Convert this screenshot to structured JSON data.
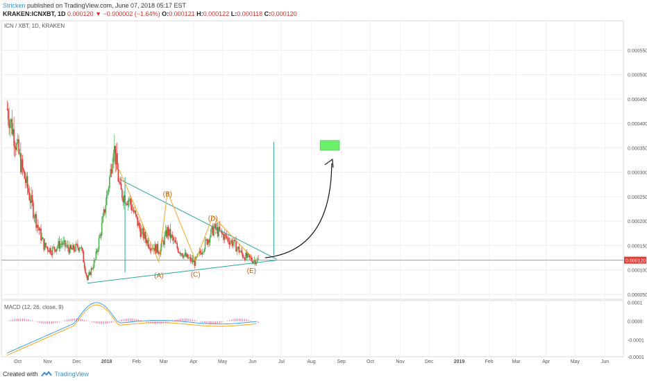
{
  "header": {
    "author": "Stricken",
    "published": "published on TradingView.com, June 07, 2018 05:17 EST",
    "symbol_line": "KRAKEN:ICNXBT, 1D",
    "last": "0.000120",
    "change": "▼ −0.000002 (−1.64%)",
    "o_label": "O:",
    "o": "0.000121",
    "h_label": "H:",
    "h": "0.000122",
    "l_label": "L:",
    "l": "0.000118",
    "c_label": "C:",
    "c": "0.000120"
  },
  "footer": {
    "created_with": "Created with",
    "brand": "TradingView"
  },
  "colors": {
    "up": "#4caf50",
    "down": "#e53935",
    "triangle": "#26a69a",
    "wave": "#f5a623",
    "target": "#6cf06c",
    "arrow": "#111111",
    "price_line": "#e57373"
  },
  "chart_data": [
    {
      "type": "candlestick",
      "title": "ICN / XBT, 1D, KRAKEN",
      "xlabel": "",
      "ylabel": "",
      "x_tick_labels": [
        "Oct",
        "Nov",
        "Dec",
        "2018",
        "Feb",
        "Mar",
        "Apr",
        "May",
        "Jun",
        "Jul",
        "Aug",
        "Sep",
        "Oct",
        "Nov",
        "Dec",
        "2019",
        "Feb",
        "Mar",
        "Apr",
        "May",
        "Jun"
      ],
      "y_ticks": [
        "0.000550",
        "0.000500",
        "0.000450",
        "0.000400",
        "0.000350",
        "0.000300",
        "0.000250",
        "0.000200",
        "0.000150",
        "0.000100",
        "0.000050"
      ],
      "ylim": [
        4e-05,
        0.00061
      ],
      "last_price_label": "0.000120",
      "close_series_approx": [
        {
          "x": "2017-09-20",
          "close": 0.00043
        },
        {
          "x": "2017-09-28",
          "close": 0.00037
        },
        {
          "x": "2017-10-05",
          "close": 0.00031
        },
        {
          "x": "2017-10-12",
          "close": 0.00026
        },
        {
          "x": "2017-10-20",
          "close": 0.0002
        },
        {
          "x": "2017-10-28",
          "close": 0.00015
        },
        {
          "x": "2017-11-05",
          "close": 0.00014
        },
        {
          "x": "2017-11-15",
          "close": 0.000155
        },
        {
          "x": "2017-11-25",
          "close": 0.00014
        },
        {
          "x": "2017-12-05",
          "close": 0.00015
        },
        {
          "x": "2017-12-12",
          "close": 8e-05
        },
        {
          "x": "2017-12-20",
          "close": 0.00012
        },
        {
          "x": "2017-12-28",
          "close": 0.0002
        },
        {
          "x": "2018-01-05",
          "close": 0.0003
        },
        {
          "x": "2018-01-08",
          "close": 0.00036
        },
        {
          "x": "2018-01-15",
          "close": 0.00026
        },
        {
          "x": "2018-01-25",
          "close": 0.00024
        },
        {
          "x": "2018-02-05",
          "close": 0.00018
        },
        {
          "x": "2018-02-15",
          "close": 0.00015
        },
        {
          "x": "2018-02-25",
          "close": 0.00014
        },
        {
          "x": "2018-03-05",
          "close": 0.00018
        },
        {
          "x": "2018-03-15",
          "close": 0.000145
        },
        {
          "x": "2018-03-25",
          "close": 0.000125
        },
        {
          "x": "2018-04-02",
          "close": 0.000115
        },
        {
          "x": "2018-04-12",
          "close": 0.00015
        },
        {
          "x": "2018-04-22",
          "close": 0.000185
        },
        {
          "x": "2018-05-02",
          "close": 0.00017
        },
        {
          "x": "2018-05-12",
          "close": 0.000155
        },
        {
          "x": "2018-05-22",
          "close": 0.00013
        },
        {
          "x": "2018-06-01",
          "close": 0.00012
        },
        {
          "x": "2018-06-07",
          "close": 0.00012
        }
      ],
      "annotations": {
        "waves": [
          {
            "label": "(A)",
            "x": "2018-02-24",
            "y": 0.000105
          },
          {
            "label": "(B)",
            "x": "2018-03-05",
            "y": 0.000248
          },
          {
            "label": "(C)",
            "x": "2018-04-03",
            "y": 0.000107
          },
          {
            "label": "(D)",
            "x": "2018-04-21",
            "y": 0.000198
          },
          {
            "label": "(E)",
            "x": "2018-05-31",
            "y": 0.000115
          }
        ],
        "triangle_upper": [
          {
            "x": "2018-01-15",
            "y": 0.000285
          },
          {
            "x": "2018-06-26",
            "y": 0.000122
          }
        ],
        "triangle_lower": [
          {
            "x": "2017-12-12",
            "y": 7.3e-05
          },
          {
            "x": "2018-06-26",
            "y": 0.00012
          }
        ],
        "target_box": {
          "x_start": "2018-08-10",
          "x_end": "2018-08-30",
          "y_low": 0.000345,
          "y_high": 0.000365
        }
      }
    },
    {
      "type": "line",
      "title": "MACD (12, 26, close, 9)",
      "y_ticks": [
        "0.0001",
        "0.0000",
        "-0.0001",
        "-0.0001"
      ],
      "ylim": [
        -0.00019,
        0.00011
      ],
      "series": []
    }
  ]
}
